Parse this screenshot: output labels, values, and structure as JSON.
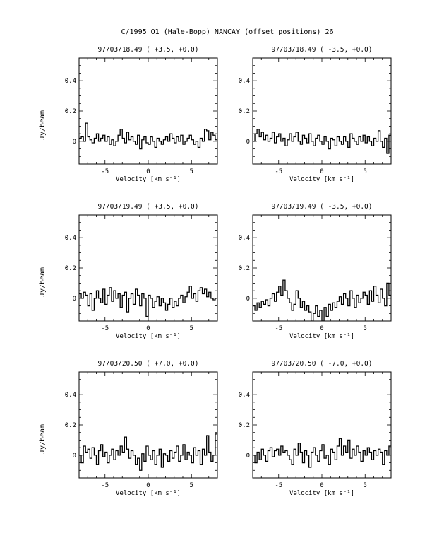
{
  "page_title": "C/1995 O1 (Hale-Bopp)   NANCAY     (offset positions)   26",
  "chart_data": [
    {
      "type": "line",
      "title": "97/03/18.49  ( +3.5, +0.0)",
      "xlabel": "Velocity [km s⁻¹]",
      "ylabel": "Jy/beam",
      "xlim": [
        -8,
        8
      ],
      "ylim": [
        -0.15,
        0.55
      ],
      "xticks": [
        -5,
        0,
        5
      ],
      "xtick_labels": [
        "-5",
        "0",
        "5"
      ],
      "yticks": [
        0,
        0.2,
        0.4
      ],
      "ytick_labels": [
        "0",
        "0.2",
        "0.4"
      ],
      "grid": false,
      "series": [
        {
          "x_start": -8,
          "x_step": 0.25,
          "values": [
            0.02,
            0.03,
            0.0,
            0.12,
            0.03,
            0.01,
            -0.01,
            0.02,
            0.05,
            0.0,
            0.02,
            0.04,
            0.0,
            0.03,
            -0.02,
            0.01,
            -0.03,
            0.0,
            0.04,
            0.08,
            0.02,
            -0.01,
            0.06,
            0.01,
            0.03,
            0.0,
            -0.02,
            0.04,
            -0.05,
            0.01,
            0.03,
            -0.01,
            -0.02,
            0.03,
            0.0,
            -0.04,
            0.02,
            0.0,
            -0.02,
            0.01,
            0.03,
            0.0,
            0.05,
            0.02,
            -0.01,
            0.03,
            0.0,
            0.04,
            -0.02,
            0.0,
            0.02,
            0.04,
            0.01,
            -0.02,
            0.0,
            -0.04,
            0.02,
            0.0,
            0.08,
            0.07,
            0.01,
            0.06,
            0.04,
            0.01
          ]
        }
      ]
    },
    {
      "type": "line",
      "title": "97/03/18.49  ( -3.5, +0.0)",
      "xlabel": "Velocity [km s⁻¹]",
      "ylabel": "",
      "xlim": [
        -8,
        8
      ],
      "ylim": [
        -0.15,
        0.55
      ],
      "xticks": [
        -5,
        0,
        5
      ],
      "xtick_labels": [
        "-5",
        "0",
        "5"
      ],
      "yticks": [
        0,
        0.2,
        0.4
      ],
      "ytick_labels": [
        "0",
        "0.2",
        "0.4"
      ],
      "grid": false,
      "series": [
        {
          "x_start": -8,
          "x_step": 0.25,
          "values": [
            0.0,
            0.05,
            0.08,
            0.03,
            0.06,
            0.01,
            0.04,
            0.0,
            0.02,
            0.06,
            -0.01,
            0.03,
            0.05,
            0.0,
            0.02,
            -0.03,
            0.01,
            0.05,
            0.0,
            0.03,
            0.06,
            0.0,
            -0.02,
            0.04,
            0.02,
            -0.01,
            0.05,
            0.0,
            -0.03,
            0.02,
            0.04,
            0.0,
            -0.02,
            0.03,
            0.0,
            -0.05,
            0.02,
            0.01,
            -0.03,
            0.03,
            0.0,
            -0.02,
            0.03,
            0.0,
            -0.04,
            0.05,
            0.02,
            0.0,
            -0.02,
            0.03,
            0.0,
            0.04,
            -0.01,
            0.03,
            0.0,
            -0.03,
            0.02,
            0.0,
            0.07,
            0.0,
            -0.04,
            0.02,
            -0.08,
            0.04
          ]
        }
      ]
    },
    {
      "type": "line",
      "title": "97/03/19.49  ( +3.5, +0.0)",
      "xlabel": "Velocity [km s⁻¹]",
      "ylabel": "Jy/beam",
      "xlim": [
        -8,
        8
      ],
      "ylim": [
        -0.15,
        0.55
      ],
      "xticks": [
        -5,
        0,
        5
      ],
      "xtick_labels": [
        "-5",
        "0",
        "5"
      ],
      "yticks": [
        0,
        0.2,
        0.4
      ],
      "ytick_labels": [
        "0",
        "0.2",
        "0.4"
      ],
      "grid": false,
      "series": [
        {
          "x_start": -8,
          "x_step": 0.25,
          "values": [
            0.03,
            0.0,
            0.04,
            0.02,
            -0.05,
            0.03,
            -0.08,
            0.0,
            0.05,
            0.0,
            -0.03,
            0.06,
            -0.04,
            0.02,
            0.07,
            -0.02,
            0.05,
            0.0,
            0.03,
            -0.06,
            0.02,
            0.04,
            -0.09,
            0.0,
            0.03,
            -0.04,
            0.06,
            0.02,
            -0.05,
            0.03,
            0.0,
            -0.12,
            0.02,
            0.0,
            -0.06,
            -0.02,
            0.01,
            -0.05,
            0.0,
            -0.03,
            -0.08,
            -0.04,
            0.0,
            -0.06,
            -0.02,
            -0.05,
            0.0,
            0.02,
            -0.03,
            0.01,
            0.04,
            0.08,
            0.0,
            0.03,
            -0.02,
            0.05,
            0.07,
            0.03,
            0.06,
            0.01,
            0.04,
            0.0,
            -0.01,
            0.0
          ]
        }
      ]
    },
    {
      "type": "line",
      "title": "97/03/19.49  ( -3.5, +0.0)",
      "xlabel": "Velocity [km s⁻¹]",
      "ylabel": "",
      "xlim": [
        -8,
        8
      ],
      "ylim": [
        -0.15,
        0.55
      ],
      "xticks": [
        -5,
        0,
        5
      ],
      "xtick_labels": [
        "-5",
        "0",
        "5"
      ],
      "yticks": [
        0,
        0.2,
        0.4
      ],
      "ytick_labels": [
        "0",
        "0.2",
        "0.4"
      ],
      "grid": false,
      "series": [
        {
          "x_start": -8,
          "x_step": 0.25,
          "values": [
            -0.05,
            -0.08,
            -0.03,
            -0.06,
            -0.02,
            -0.04,
            -0.01,
            -0.05,
            0.0,
            0.03,
            -0.02,
            0.04,
            0.08,
            0.02,
            0.12,
            0.05,
            0.0,
            -0.03,
            -0.08,
            -0.04,
            0.05,
            0.0,
            -0.06,
            -0.02,
            -0.08,
            -0.05,
            -0.09,
            -0.15,
            -0.1,
            -0.05,
            -0.12,
            -0.08,
            -0.15,
            -0.06,
            -0.12,
            -0.04,
            -0.08,
            -0.03,
            -0.06,
            -0.02,
            0.01,
            -0.04,
            0.03,
            0.0,
            -0.05,
            0.05,
            0.0,
            -0.06,
            0.02,
            -0.03,
            0.0,
            0.04,
            0.02,
            -0.04,
            0.05,
            -0.02,
            0.08,
            0.02,
            -0.03,
            0.06,
            0.0,
            -0.05,
            0.1,
            0.02
          ]
        }
      ]
    },
    {
      "type": "line",
      "title": "97/03/20.50  ( +7.0, +0.0)",
      "xlabel": "Velocity [km s⁻¹]",
      "ylabel": "Jy/beam",
      "xlim": [
        -8,
        8
      ],
      "ylim": [
        -0.15,
        0.55
      ],
      "xticks": [
        -5,
        0,
        5
      ],
      "xtick_labels": [
        "-5",
        "0",
        "5"
      ],
      "yticks": [
        0,
        0.2,
        0.4
      ],
      "ytick_labels": [
        "0",
        "0.2",
        "0.4"
      ],
      "grid": false,
      "series": [
        {
          "x_start": -8,
          "x_step": 0.25,
          "values": [
            0.0,
            -0.05,
            0.06,
            0.02,
            0.04,
            -0.02,
            0.05,
            0.0,
            -0.06,
            0.03,
            0.07,
            -0.01,
            0.02,
            -0.05,
            0.0,
            0.04,
            -0.03,
            0.03,
            0.0,
            0.06,
            0.02,
            0.12,
            0.04,
            -0.02,
            0.03,
            0.0,
            -0.06,
            -0.02,
            -0.1,
            0.01,
            -0.04,
            0.06,
            0.0,
            -0.03,
            0.03,
            -0.06,
            0.0,
            0.04,
            -0.08,
            0.01,
            0.0,
            -0.04,
            0.03,
            -0.02,
            0.02,
            0.06,
            -0.04,
            0.0,
            0.07,
            -0.03,
            0.02,
            0.0,
            -0.05,
            0.05,
            0.0,
            0.03,
            -0.06,
            0.04,
            0.0,
            0.13,
            0.02,
            -0.04,
            0.0,
            0.14
          ]
        }
      ]
    },
    {
      "type": "line",
      "title": "97/03/20.50  ( -7.0, +0.0)",
      "xlabel": "Velocity [km s⁻¹]",
      "ylabel": "",
      "xlim": [
        -8,
        8
      ],
      "ylim": [
        -0.15,
        0.55
      ],
      "xticks": [
        -5,
        0,
        5
      ],
      "xtick_labels": [
        "-5",
        "0",
        "5"
      ],
      "yticks": [
        0,
        0.2,
        0.4
      ],
      "ytick_labels": [
        "0",
        "0.2",
        "0.4"
      ],
      "grid": false,
      "series": [
        {
          "x_start": -8,
          "x_step": 0.25,
          "values": [
            0.0,
            -0.05,
            0.02,
            -0.03,
            0.04,
            0.0,
            -0.04,
            0.03,
            0.05,
            -0.01,
            0.03,
            0.04,
            0.0,
            0.06,
            0.02,
            0.03,
            0.0,
            -0.03,
            -0.06,
            0.04,
            0.0,
            0.08,
            0.02,
            -0.05,
            0.03,
            0.0,
            -0.08,
            0.02,
            0.05,
            0.0,
            -0.04,
            0.03,
            0.07,
            -0.02,
            0.0,
            -0.06,
            0.04,
            0.02,
            -0.03,
            0.06,
            0.11,
            0.0,
            0.06,
            0.02,
            0.1,
            -0.02,
            0.04,
            0.0,
            0.06,
            0.02,
            -0.04,
            0.03,
            0.0,
            0.05,
            0.02,
            -0.03,
            0.03,
            0.0,
            0.04,
            0.02,
            -0.06,
            0.03,
            0.0,
            0.06
          ]
        }
      ]
    }
  ]
}
